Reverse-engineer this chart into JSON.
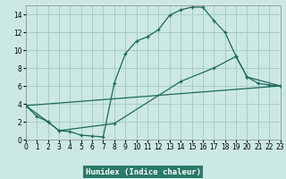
{
  "title": "",
  "xlabel": "Humidex (Indice chaleur)",
  "bg_color": "#cce8e4",
  "plot_bg_color": "#cce8e4",
  "grid_color": "#aaccc8",
  "line_color": "#1a6b5a",
  "xlim": [
    0,
    23
  ],
  "ylim": [
    0,
    15
  ],
  "xticks": [
    0,
    1,
    2,
    3,
    4,
    5,
    6,
    7,
    8,
    9,
    10,
    11,
    12,
    13,
    14,
    15,
    16,
    17,
    18,
    19,
    20,
    21,
    22,
    23
  ],
  "yticks": [
    0,
    2,
    4,
    6,
    8,
    10,
    12,
    14
  ],
  "line1_x": [
    0,
    1,
    2,
    3,
    4,
    5,
    6,
    7,
    8,
    9,
    10,
    11,
    12,
    13,
    14,
    15,
    16,
    17,
    18,
    19,
    20,
    21,
    22,
    23
  ],
  "line1_y": [
    3.8,
    2.6,
    2.0,
    1.0,
    0.9,
    0.5,
    0.4,
    0.3,
    6.3,
    9.6,
    11.0,
    11.5,
    12.3,
    13.9,
    14.5,
    14.8,
    14.8,
    13.3,
    12.0,
    9.3,
    7.0,
    6.3,
    6.1,
    6.0
  ],
  "line2_x": [
    0,
    2,
    3,
    8,
    14,
    17,
    19,
    20,
    23
  ],
  "line2_y": [
    3.8,
    2.0,
    1.0,
    1.8,
    6.5,
    8.0,
    9.3,
    7.0,
    6.0
  ],
  "line3_x": [
    0,
    23
  ],
  "line3_y": [
    3.8,
    6.0
  ],
  "xlabel_bg": "#2a7a6a",
  "xlabel_color": "#ffffff"
}
